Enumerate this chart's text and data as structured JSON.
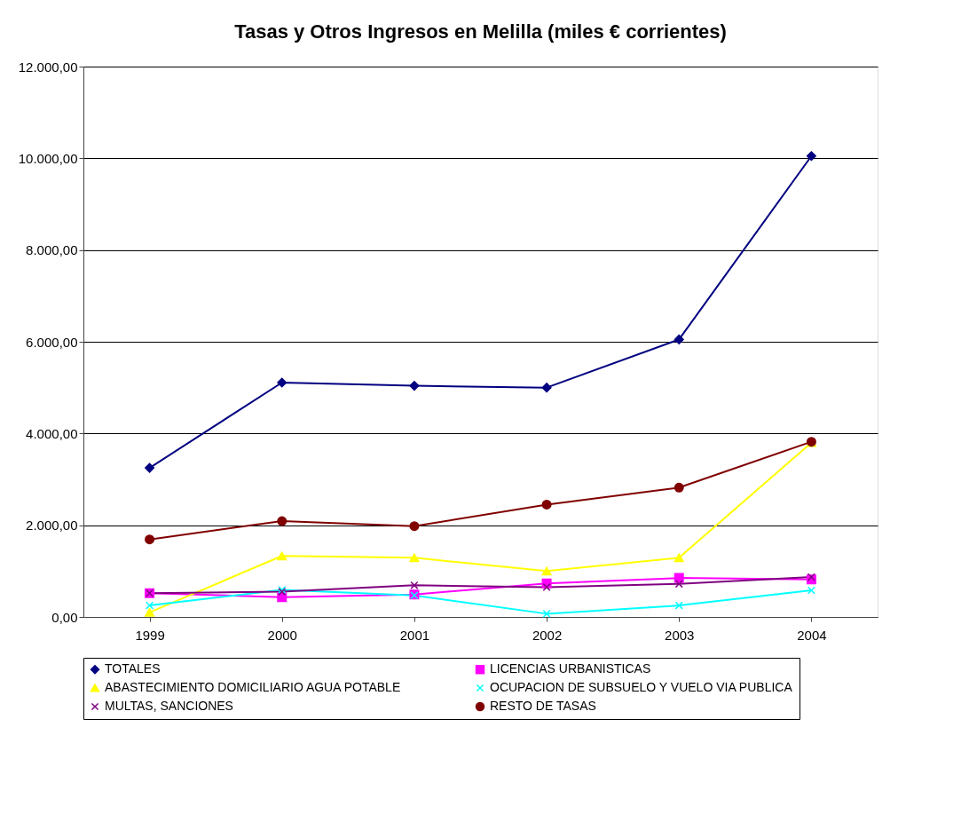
{
  "chart_data": {
    "type": "line",
    "title": "Tasas y Otros Ingresos en  Melilla (miles € corrientes)",
    "categories": [
      "1999",
      "2000",
      "2001",
      "2002",
      "2003",
      "2004"
    ],
    "series": [
      {
        "name": "TOTALES",
        "color": "#000080",
        "marker": "diamond",
        "values": [
          3250,
          5110,
          5040,
          5000,
          6050,
          10050
        ]
      },
      {
        "name": "LICENCIAS URBANISTICAS",
        "color": "#ff00ff",
        "marker": "square",
        "values": [
          520,
          430,
          490,
          730,
          850,
          820
        ]
      },
      {
        "name": "ABASTECIMIENTO DOMICILIARIO AGUA POTABLE",
        "color": "#ffff00",
        "marker": "triangle",
        "values": [
          100,
          1330,
          1290,
          1000,
          1290,
          3800
        ]
      },
      {
        "name": "OCUPACION DE SUBSUELO Y VUELO VIA PUBLICA",
        "color": "#00ffff",
        "marker": "cross",
        "values": [
          250,
          590,
          470,
          70,
          250,
          580
        ]
      },
      {
        "name": "MULTAS, SANCIONES",
        "color": "#800080",
        "marker": "cross",
        "values": [
          520,
          550,
          690,
          650,
          720,
          870
        ]
      },
      {
        "name": "RESTO DE TASAS",
        "color": "#800000",
        "marker": "circle",
        "values": [
          1690,
          2090,
          1980,
          2450,
          2820,
          3820
        ]
      }
    ],
    "ylim": [
      0,
      12000
    ],
    "yticks": [
      {
        "value": 0,
        "label": "0,00"
      },
      {
        "value": 2000,
        "label": "2.000,00"
      },
      {
        "value": 4000,
        "label": "4.000,00"
      },
      {
        "value": 6000,
        "label": "6.000,00"
      },
      {
        "value": 8000,
        "label": "8.000,00"
      },
      {
        "value": 10000,
        "label": "10.000,00"
      },
      {
        "value": 12000,
        "label": "12.000,00"
      }
    ],
    "grid": "y",
    "legend": "bottom",
    "line_style": "solid"
  }
}
